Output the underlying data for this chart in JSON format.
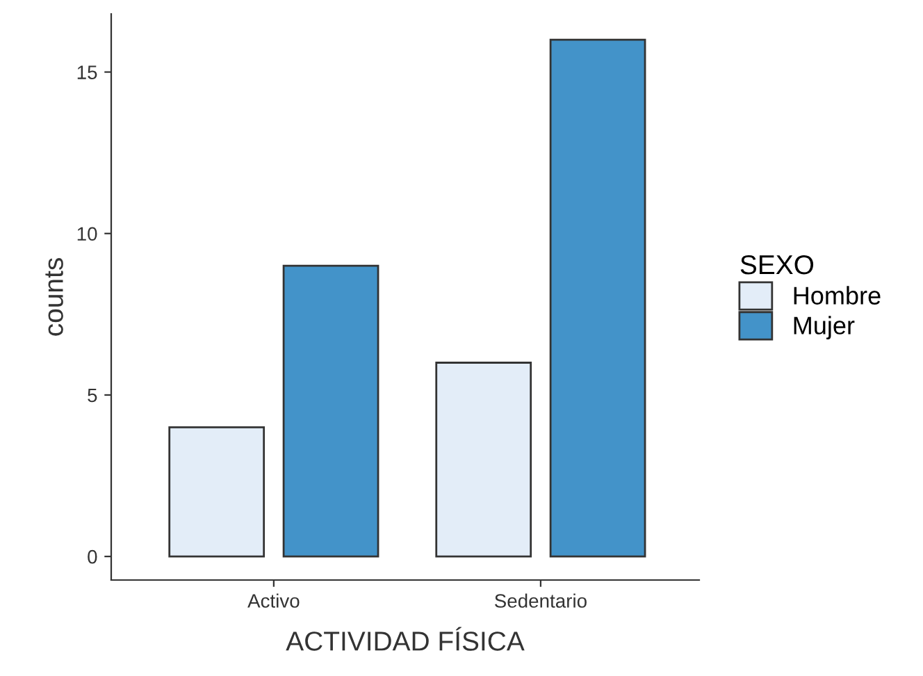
{
  "chart_data": {
    "type": "bar",
    "xlabel": "ACTIVIDAD FÍSICA",
    "ylabel": "counts",
    "legend_title": "SEXO",
    "categories": [
      "Activo",
      "Sedentario"
    ],
    "series": [
      {
        "name": "Hombre",
        "color": "#e3edf8",
        "values": [
          4,
          6
        ]
      },
      {
        "name": "Mujer",
        "color": "#4393c9",
        "values": [
          9,
          16
        ]
      }
    ],
    "ylim": [
      -0.73,
      16.8
    ],
    "yticks": [
      0,
      5,
      10,
      15
    ],
    "grid": false,
    "legend": "right"
  }
}
